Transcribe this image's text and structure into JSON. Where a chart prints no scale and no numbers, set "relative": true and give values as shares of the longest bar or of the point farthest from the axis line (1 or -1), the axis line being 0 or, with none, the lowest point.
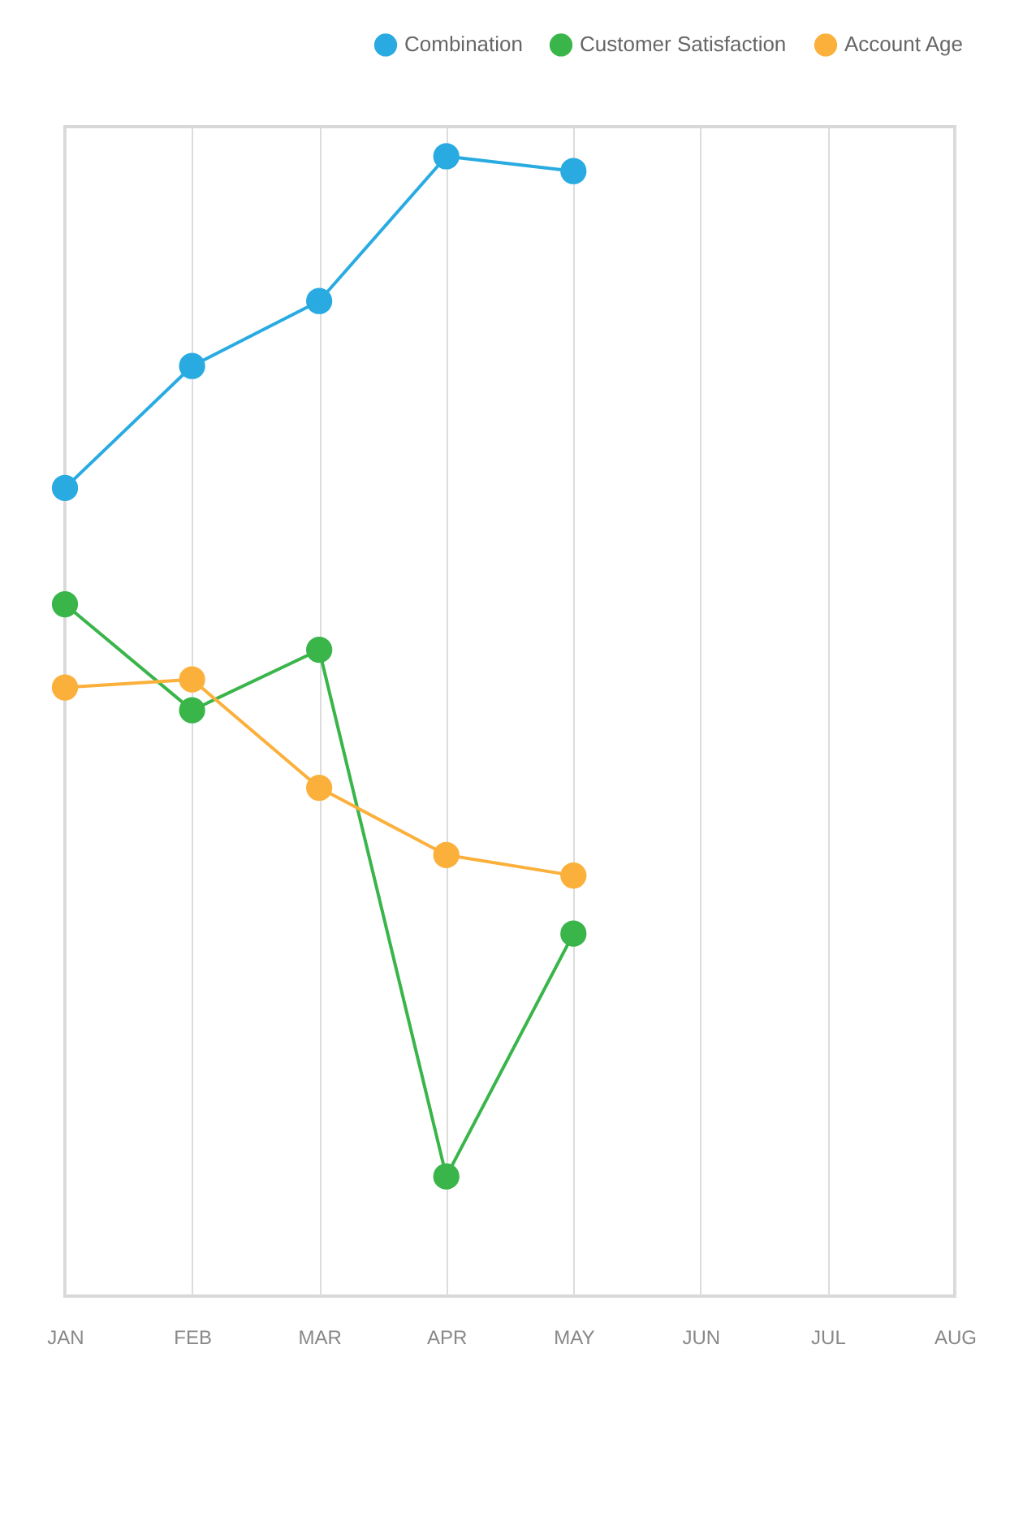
{
  "chart_data": {
    "type": "line",
    "relative": true,
    "categories": [
      "JAN",
      "FEB",
      "MAR",
      "APR",
      "MAY",
      "JUN",
      "JUL",
      "AUG"
    ],
    "series": [
      {
        "name": "Combination",
        "color": "#29abe2",
        "values": [
          0.709,
          0.816,
          0.873,
          1,
          0.987,
          null,
          null,
          null
        ]
      },
      {
        "name": "Customer Satisfaction",
        "color": "#39b54a",
        "values": [
          0.607,
          0.514,
          0.567,
          0.105,
          0.318,
          null,
          null,
          null
        ]
      },
      {
        "name": "Account Age",
        "color": "#fbb03b",
        "values": [
          0.534,
          0.541,
          0.446,
          0.387,
          0.369,
          null,
          null,
          null
        ]
      }
    ],
    "grid": "x",
    "legend": "top right",
    "marker": "circle",
    "line_style": "solid"
  }
}
